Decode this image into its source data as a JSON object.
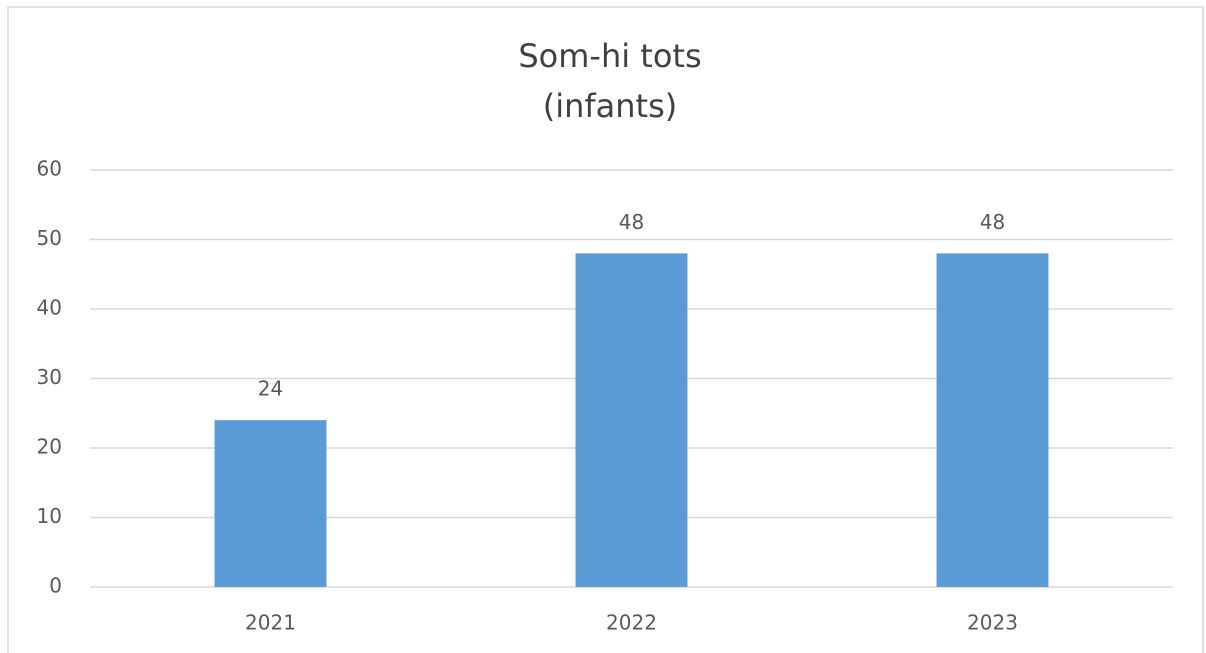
{
  "chart_data": {
    "type": "bar",
    "title": [
      "Som-hi tots",
      "(infants)"
    ],
    "categories": [
      "2021",
      "2022",
      "2023"
    ],
    "values": [
      24,
      48,
      48
    ],
    "color": "#5b9bd5",
    "ylim": [
      0,
      60
    ],
    "yticks": [
      0,
      10,
      20,
      30,
      40,
      50,
      60
    ],
    "grid": true
  }
}
